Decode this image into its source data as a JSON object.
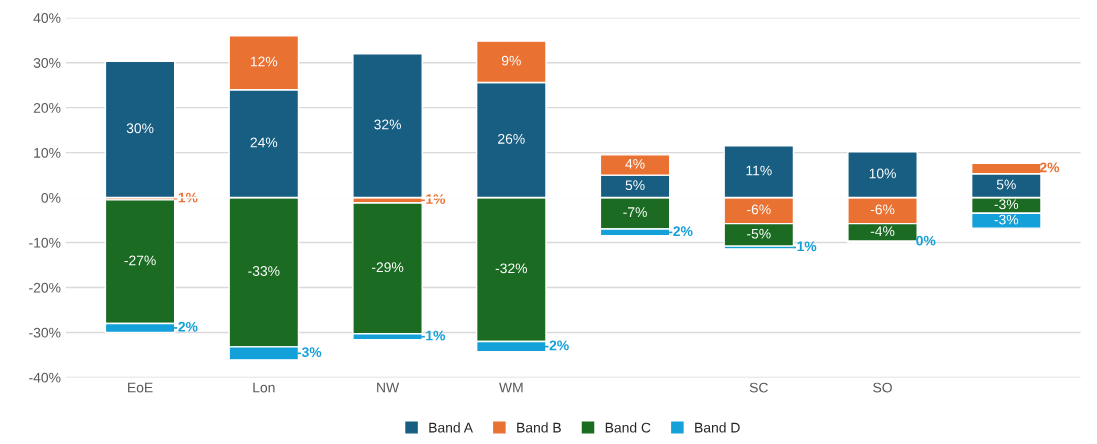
{
  "chart_data": {
    "type": "bar",
    "stacked": true,
    "categories": [
      "EoE",
      "Lon",
      "NW",
      "WM",
      null,
      "SC",
      "SO",
      null
    ],
    "series": [
      {
        "name": "Band A",
        "color": "#175e82",
        "values": [
          30.3,
          24,
          32,
          25.6,
          5,
          11.5,
          10.2,
          5.3
        ],
        "value_labels": [
          "30%",
          "24%",
          "32%",
          "26%",
          "5%",
          "11%",
          "10%",
          "5%"
        ]
      },
      {
        "name": "Band B",
        "color": "#e97132",
        "values": [
          -0.5,
          12,
          -1.2,
          9.2,
          4.5,
          -5.8,
          -5.8,
          2.3
        ],
        "value_labels": [
          "-1%",
          "12%",
          "-1%",
          "9%",
          "4%",
          "-6%",
          "-6%",
          "2%"
        ]
      },
      {
        "name": "Band C",
        "color": "#1b6b23",
        "values": [
          -27.5,
          -33.2,
          -29.1,
          -32,
          -7,
          -5,
          -3.9,
          -3.5
        ],
        "value_labels": [
          "-27%",
          "-33%",
          "-29%",
          "-32%",
          "-7%",
          "-5%",
          "-4%",
          "-3%"
        ]
      },
      {
        "name": "Band D",
        "color": "#14a0d8",
        "values": [
          -2,
          -2.9,
          -1.3,
          -2.3,
          -1.5,
          -0.6,
          -0.3,
          -3.3
        ],
        "value_labels": [
          "-2%",
          "-3%",
          "-1%",
          "-2%",
          "-2%",
          "-1%",
          "0%",
          "-3%"
        ]
      }
    ],
    "ylim": [
      -40,
      40
    ],
    "yticks": [
      {
        "value": -40,
        "label": "-40%"
      },
      {
        "value": -30,
        "label": "-30%"
      },
      {
        "value": -20,
        "label": "-20%"
      },
      {
        "value": -10,
        "label": "-10%"
      },
      {
        "value": 0,
        "label": "0%"
      },
      {
        "value": 10,
        "label": "10%"
      },
      {
        "value": 20,
        "label": "20%"
      },
      {
        "value": 30,
        "label": "30%"
      },
      {
        "value": 40,
        "label": "40%"
      }
    ],
    "grid": "y",
    "legend": "bottom"
  }
}
